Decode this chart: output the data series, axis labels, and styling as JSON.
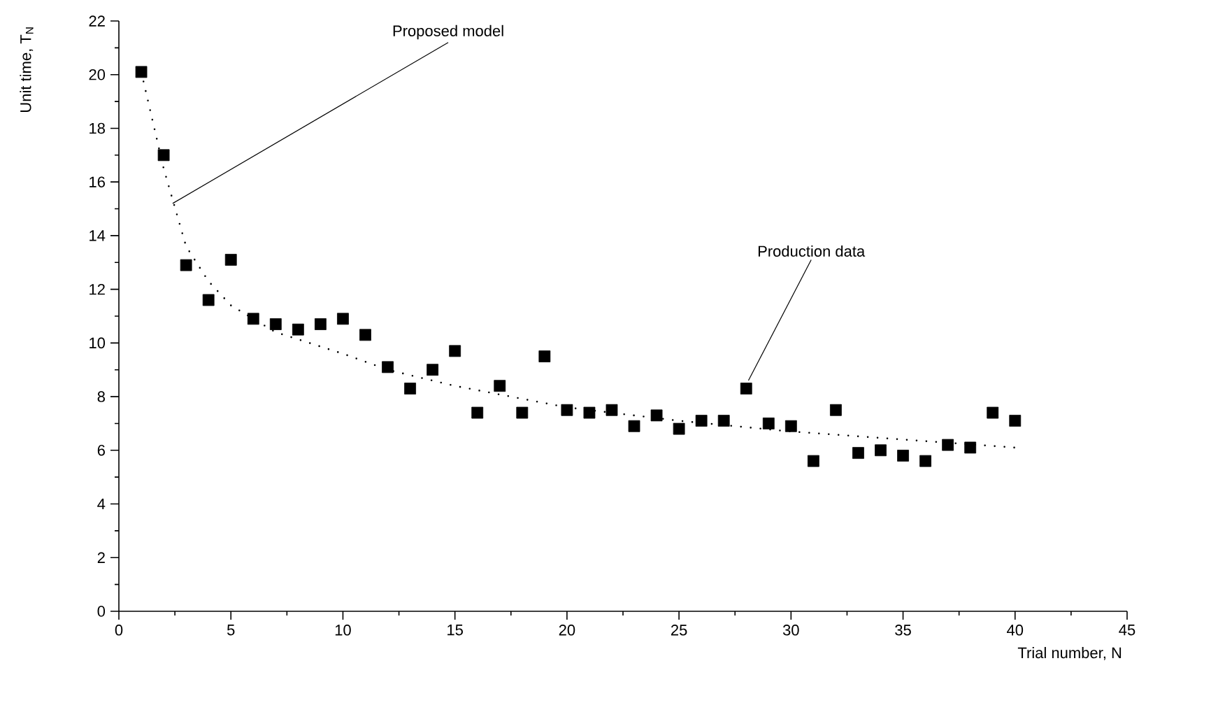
{
  "chart_data": {
    "type": "scatter",
    "xlabel": "Trial number, N",
    "ylabel": "Unit time, T$_{N}$",
    "xlim": [
      0,
      45
    ],
    "xticks": [
      0,
      5,
      10,
      15,
      20,
      25,
      30,
      35,
      40,
      45
    ],
    "ylim": [
      0,
      22
    ],
    "yticks": [
      0,
      2,
      4,
      6,
      8,
      10,
      12,
      14,
      16,
      18,
      20,
      22
    ],
    "series": [
      {
        "color": "#000000",
        "marker": "square",
        "x": [
          1,
          2,
          3,
          4,
          5,
          6,
          7,
          8,
          9,
          10,
          11,
          12,
          13,
          14,
          15,
          16,
          17,
          18,
          19,
          20,
          21,
          22,
          23,
          24,
          25,
          26,
          27,
          28,
          29,
          30,
          31,
          32,
          33,
          34,
          35,
          36,
          37,
          38,
          39,
          40
        ],
        "values": [
          20.1,
          17.0,
          12.9,
          11.6,
          13.1,
          10.9,
          10.7,
          10.5,
          10.7,
          10.9,
          10.3,
          9.1,
          8.3,
          9.0,
          9.7,
          7.4,
          8.4,
          7.4,
          9.5,
          7.5,
          7.4,
          7.5,
          6.9,
          7.3,
          6.8,
          7.1,
          7.1,
          8.3,
          7.0,
          6.9,
          5.6,
          7.5,
          5.9,
          6.0,
          5.8,
          5.6,
          6.2,
          6.1,
          7.4,
          7.1
        ]
      },
      {
        "type": "line",
        "color": "#000000",
        "line_style": "dotted",
        "x": [
          1,
          2,
          3,
          4,
          5,
          7,
          10,
          12,
          15,
          20,
          25,
          30,
          35,
          40
        ],
        "values": [
          20.1,
          16.5,
          13.6,
          12.3,
          11.4,
          10.4,
          9.6,
          9.0,
          8.4,
          7.6,
          7.1,
          6.7,
          6.4,
          6.1
        ]
      }
    ],
    "annotations": [
      {
        "text": "Proposed model",
        "x": 2.4,
        "y": 15.2
      },
      {
        "text": "Production data",
        "x": 28.1,
        "y": 8.6
      }
    ]
  }
}
